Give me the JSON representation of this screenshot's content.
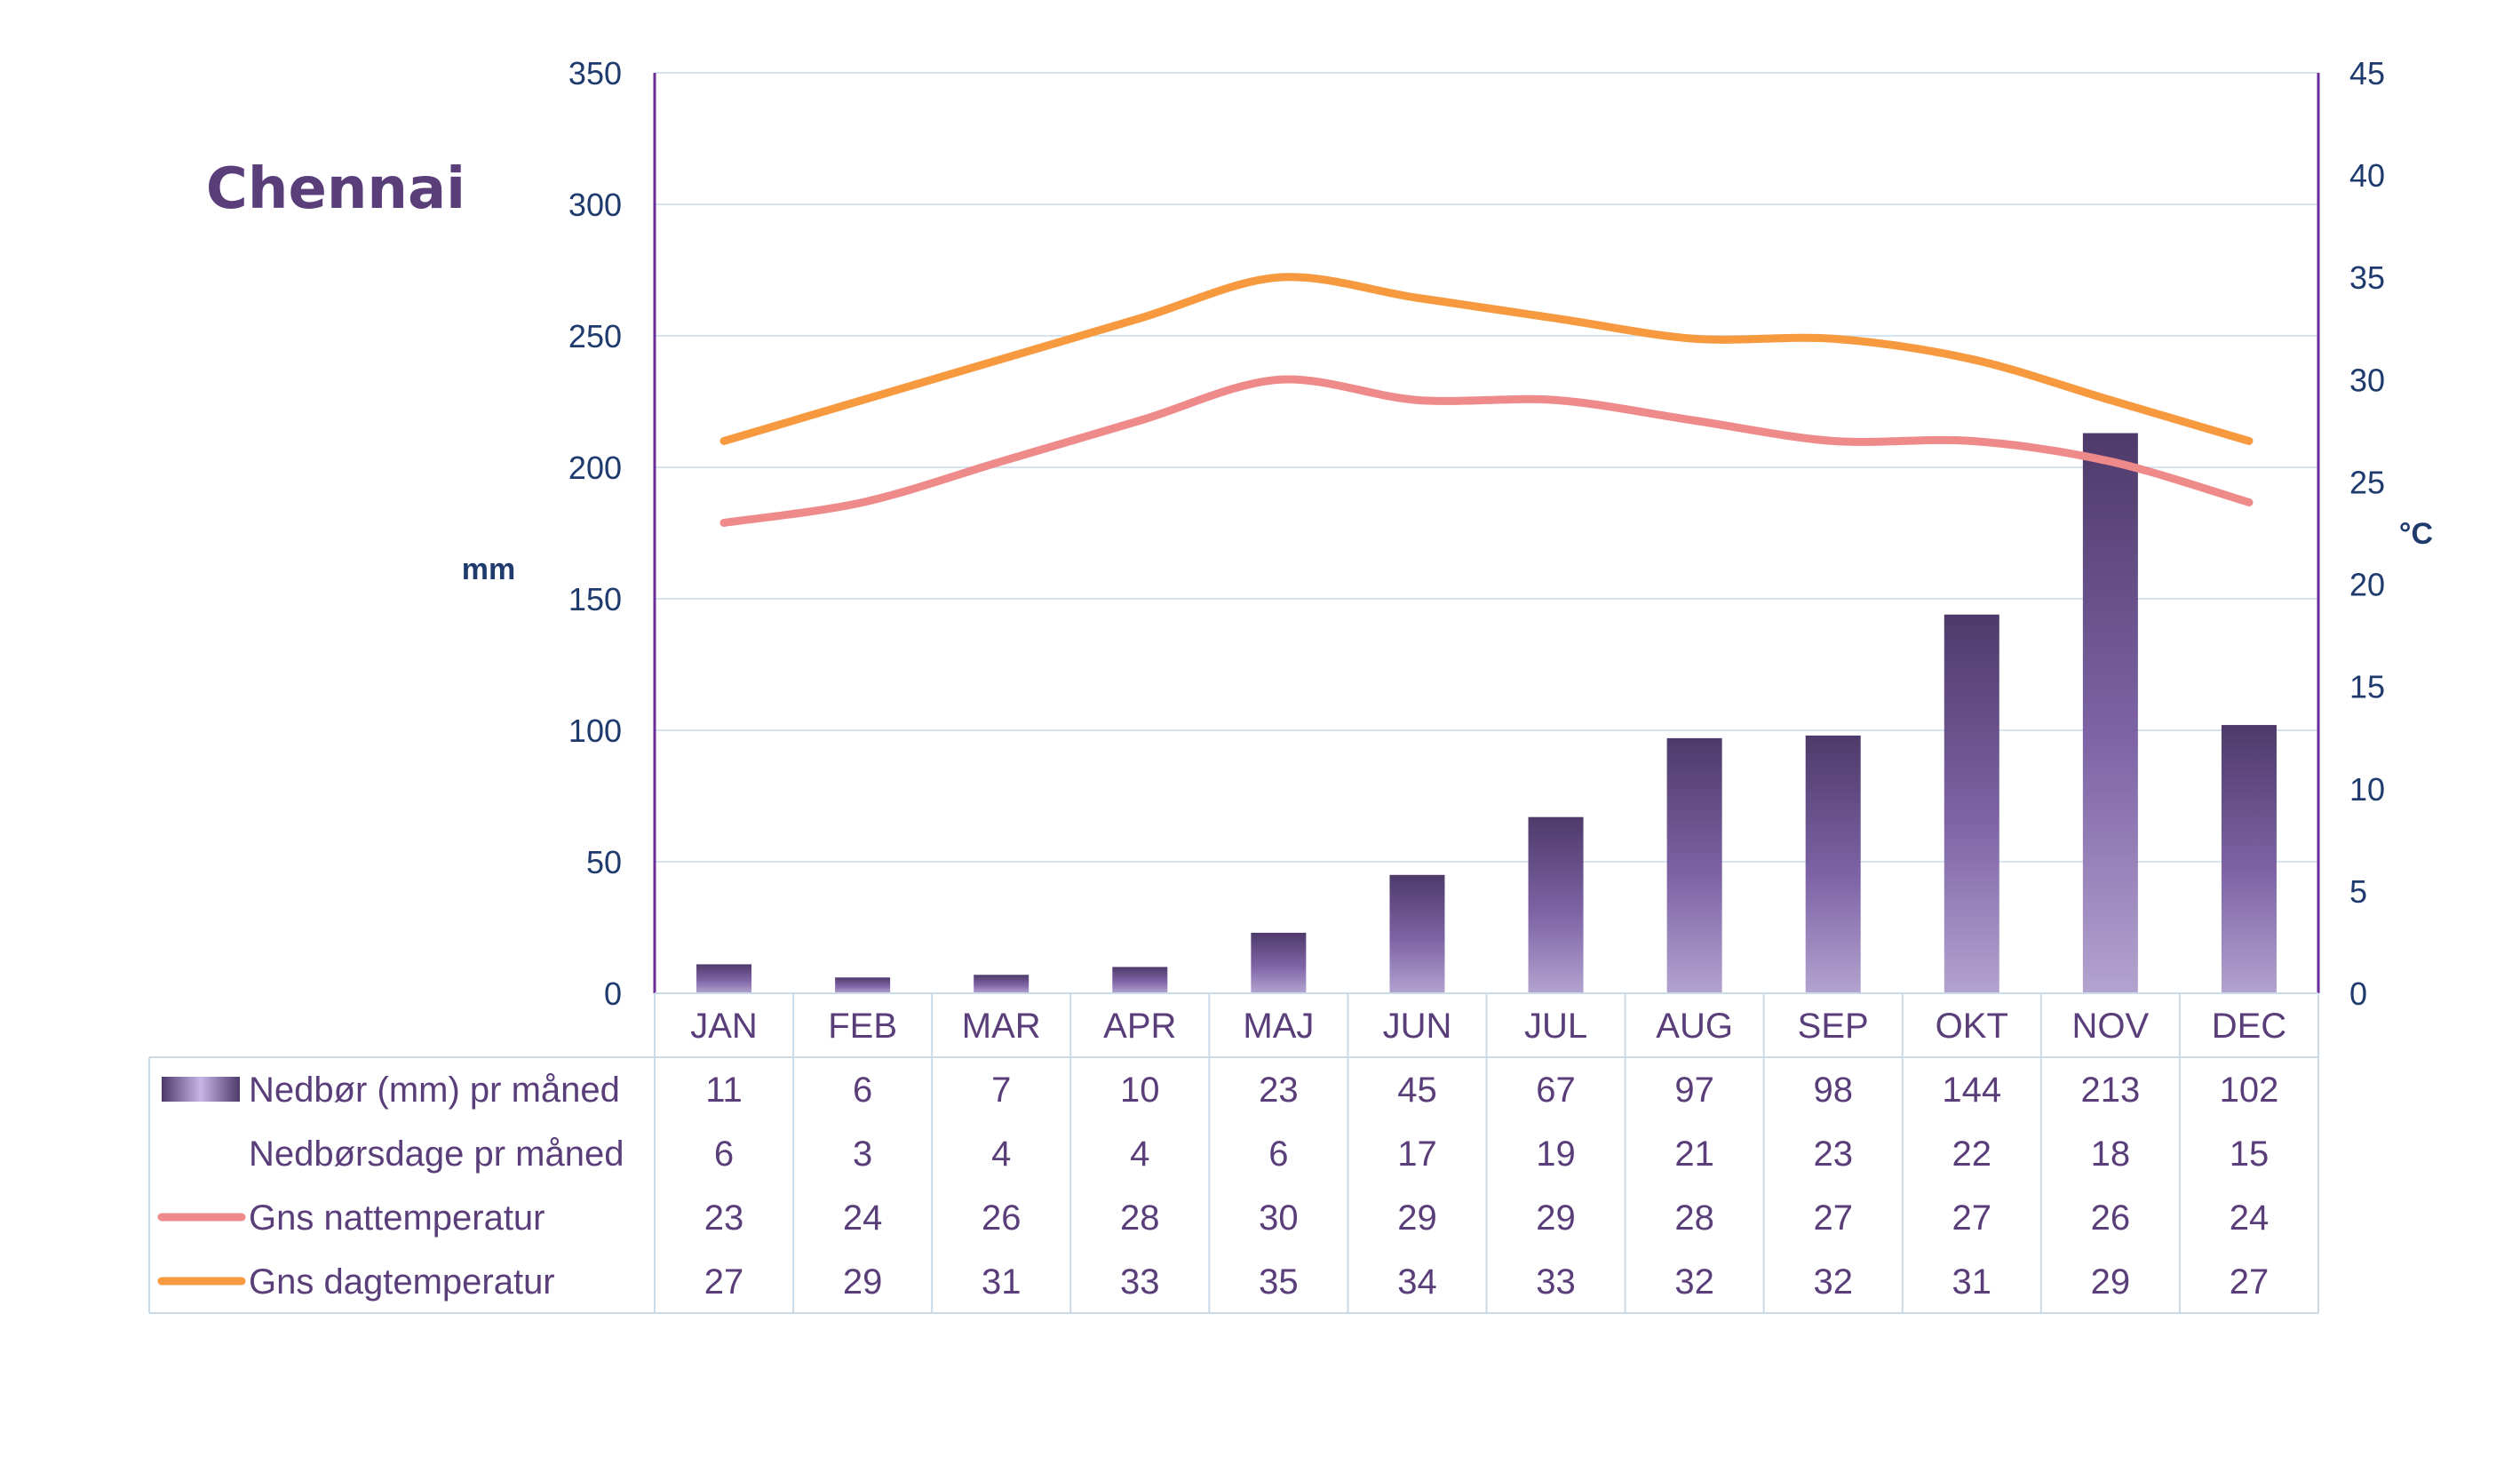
{
  "title": "Chennai",
  "colors": {
    "bar_dark": "#4e3a6a",
    "bar_mid": "#7e64a6",
    "bar_light": "#b3a3cf",
    "night_line": "#ef8a8a",
    "day_line": "#f7993f",
    "axis": "#6a2c9a",
    "text": "#5a3e7a",
    "tick": "#1f3b6e"
  },
  "legend_icons": [
    "bar-swatch",
    "",
    "night-line-swatch",
    "day-line-swatch"
  ],
  "chart_data": {
    "type": "bar",
    "title": "Chennai",
    "categories": [
      "JAN",
      "FEB",
      "MAR",
      "APR",
      "MAJ",
      "JUN",
      "JUL",
      "AUG",
      "SEP",
      "OKT",
      "NOV",
      "DEC"
    ],
    "y_left": {
      "label": "mm",
      "range": [
        0,
        350
      ],
      "ticks": [
        "0",
        "50",
        "100",
        "150",
        "200",
        "250",
        "300",
        "350"
      ]
    },
    "y_right": {
      "label": "°C",
      "range": [
        0,
        45
      ],
      "ticks": [
        "0",
        "5",
        "10",
        "15",
        "20",
        "25",
        "30",
        "35",
        "40",
        "45"
      ]
    },
    "grid": true,
    "legend": "data-table",
    "series": [
      {
        "name": "Nedbør (mm) pr måned",
        "type": "bar",
        "axis": "left",
        "values": [
          11,
          6,
          7,
          10,
          23,
          45,
          67,
          97,
          98,
          144,
          213,
          102
        ]
      },
      {
        "name": "Nedbørsdage pr måned",
        "type": "table-only",
        "values": [
          6,
          3,
          4,
          4,
          6,
          17,
          19,
          21,
          23,
          22,
          18,
          15
        ]
      },
      {
        "name": "Gns nattemperatur",
        "type": "line",
        "axis": "right",
        "values": [
          23,
          24,
          26,
          28,
          30,
          29,
          29,
          28,
          27,
          27,
          26,
          24
        ]
      },
      {
        "name": "Gns dagtemperatur",
        "type": "line",
        "axis": "right",
        "values": [
          27,
          29,
          31,
          33,
          35,
          34,
          33,
          32,
          32,
          31,
          29,
          27
        ]
      }
    ]
  }
}
